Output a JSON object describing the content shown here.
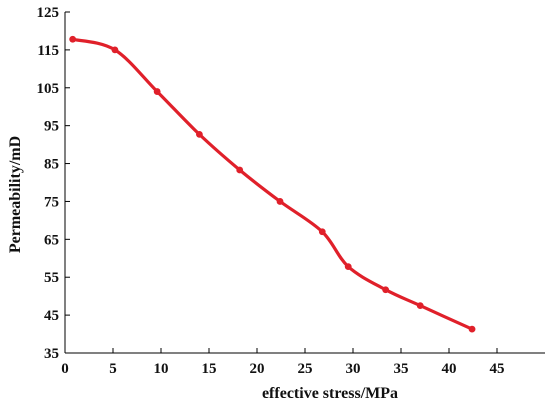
{
  "chart_data": {
    "type": "line",
    "title": "",
    "xlabel": "effective stress/MPa",
    "ylabel": "Permeability/mD",
    "xlim": [
      0,
      50
    ],
    "ylim": [
      35,
      125
    ],
    "xticks": [
      "0",
      "5",
      "10",
      "15",
      "20",
      "25",
      "30",
      "35",
      "40",
      "45"
    ],
    "xtick_values": [
      0,
      5,
      10,
      15,
      20,
      25,
      30,
      35,
      40,
      45
    ],
    "yticks": [
      "35",
      "45",
      "55",
      "65",
      "75",
      "85",
      "95",
      "105",
      "115",
      "125"
    ],
    "ytick_values": [
      35,
      45,
      55,
      65,
      75,
      85,
      95,
      105,
      115,
      125
    ],
    "grid": false,
    "legend": "none",
    "series": [
      {
        "color": "#e0202a",
        "x": [
          0.8,
          5.2,
          9.6,
          14.0,
          18.2,
          22.4,
          26.8,
          29.5,
          33.4,
          37.0,
          42.4
        ],
        "y": [
          117.8,
          115.0,
          104.0,
          92.7,
          83.3,
          75.0,
          67.0,
          57.8,
          51.7,
          47.5,
          41.3
        ]
      }
    ]
  }
}
